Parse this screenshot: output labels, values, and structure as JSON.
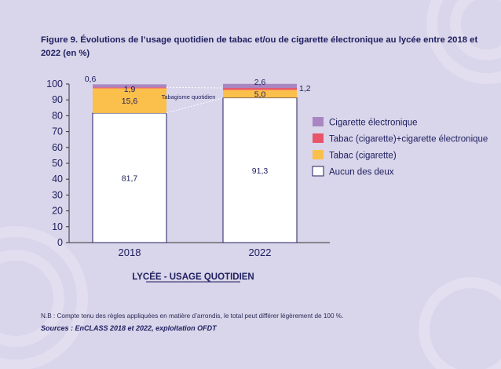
{
  "figure": {
    "title": "Figure 9. Évolutions de l’usage quotidien de tabac et/ou de cigarette électronique au lycée entre 2018 et 2022 (en %)",
    "note": "N.B : Compte tenu des règles appliquées en matière d’arrondis, le total peut différer légèrement de 100 %.",
    "sources": "Sources : EnCLASS 2018 et 2022, exploitation OFDT"
  },
  "colors": {
    "background": "#d9d5ea",
    "cigarette_electronique": "#a986c2",
    "tabac_plus_ecig": "#e8546a",
    "tabac_cigarette": "#fbbf4b",
    "aucun": "#ffffff",
    "text": "#1f2060"
  },
  "chart_data": {
    "type": "bar",
    "stacked": true,
    "categories": [
      "2018",
      "2022"
    ],
    "series": [
      {
        "name": "Aucun des deux",
        "key": "aucun",
        "values": [
          81.7,
          91.3
        ],
        "labels": [
          "81,7",
          "91,3"
        ]
      },
      {
        "name": "Tabac (cigarette)",
        "key": "tabac_cigarette",
        "values": [
          15.6,
          5.0
        ],
        "labels": [
          "15,6",
          "5,0"
        ]
      },
      {
        "name": "Tabac (cigarette)+cigarette électronique",
        "key": "tabac_plus_ecig",
        "values": [
          0.6,
          1.2
        ],
        "labels": [
          "0,6",
          "1,2"
        ]
      },
      {
        "name": "Cigarette électronique",
        "key": "cigarette_electronique",
        "values": [
          1.9,
          2.6
        ],
        "labels": [
          "1,9",
          "2,6"
        ]
      }
    ],
    "legend_order": [
      "cigarette_electronique",
      "tabac_plus_ecig",
      "tabac_cigarette",
      "aucun"
    ],
    "legend_position": "right",
    "xlabel": "LYCÉE - USAGE QUOTIDIEN",
    "ylabel": "",
    "ylim": [
      0,
      100
    ],
    "yticks": [
      0,
      10,
      20,
      30,
      40,
      50,
      60,
      70,
      80,
      90,
      100
    ],
    "annotation": "Tabagisme quotidien",
    "grid": false
  }
}
